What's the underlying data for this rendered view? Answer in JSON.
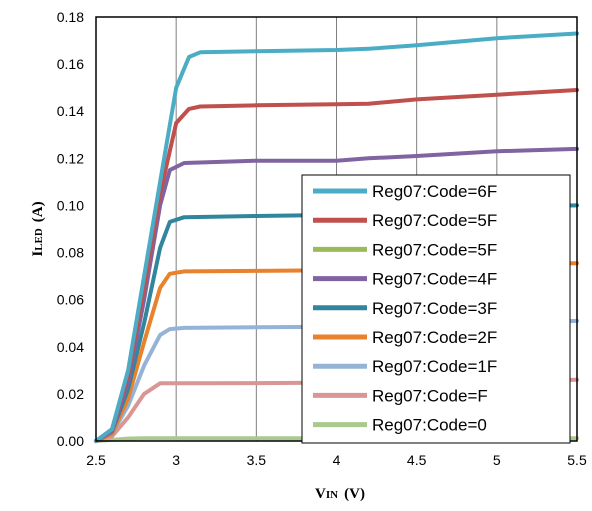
{
  "chart_data": {
    "type": "line",
    "xlabel": {
      "main": "V",
      "sub": "IN",
      "unit": "(V)"
    },
    "ylabel": {
      "main": "I",
      "sub": "LED",
      "unit": "(A)"
    },
    "xlim": [
      2.5,
      5.5
    ],
    "ylim": [
      0,
      0.18
    ],
    "xticks": [
      "2.5",
      "3",
      "3.5",
      "4",
      "4.5",
      "5",
      "5.5"
    ],
    "yticks": [
      "0.00",
      "0.02",
      "0.04",
      "0.06",
      "0.08",
      "0.10",
      "0.12",
      "0.14",
      "0.16",
      "0.18"
    ],
    "grid": "vertical",
    "legend_position": "center-right",
    "series": [
      {
        "name": "Reg07:Code=6F",
        "color": "#4bacc6",
        "points": [
          [
            2.5,
            0
          ],
          [
            2.6,
            0.005
          ],
          [
            2.7,
            0.03
          ],
          [
            2.8,
            0.07
          ],
          [
            2.9,
            0.11
          ],
          [
            3.0,
            0.15
          ],
          [
            3.08,
            0.163
          ],
          [
            3.15,
            0.165
          ],
          [
            3.5,
            0.1655
          ],
          [
            4.0,
            0.166
          ],
          [
            4.2,
            0.1665
          ],
          [
            4.5,
            0.168
          ],
          [
            5.0,
            0.171
          ],
          [
            5.5,
            0.173
          ]
        ]
      },
      {
        "name": "Reg07:Code=5F",
        "color": "#c0504d",
        "points": [
          [
            2.5,
            0
          ],
          [
            2.6,
            0.005
          ],
          [
            2.7,
            0.028
          ],
          [
            2.8,
            0.065
          ],
          [
            2.9,
            0.105
          ],
          [
            3.0,
            0.135
          ],
          [
            3.08,
            0.141
          ],
          [
            3.15,
            0.142
          ],
          [
            3.5,
            0.1425
          ],
          [
            4.0,
            0.143
          ],
          [
            4.2,
            0.1432
          ],
          [
            4.5,
            0.145
          ],
          [
            5.0,
            0.147
          ],
          [
            5.5,
            0.149
          ]
        ]
      },
      {
        "name": "Reg07:Code=5F",
        "color": "#9bbb59",
        "points": []
      },
      {
        "name": "Reg07:Code=4F",
        "color": "#8064a2",
        "points": [
          [
            2.5,
            0
          ],
          [
            2.6,
            0.004
          ],
          [
            2.7,
            0.025
          ],
          [
            2.8,
            0.06
          ],
          [
            2.9,
            0.1
          ],
          [
            2.96,
            0.115
          ],
          [
            3.05,
            0.118
          ],
          [
            3.5,
            0.119
          ],
          [
            4.0,
            0.119
          ],
          [
            4.2,
            0.12
          ],
          [
            4.5,
            0.121
          ],
          [
            5.0,
            0.123
          ],
          [
            5.5,
            0.124
          ]
        ]
      },
      {
        "name": "Reg07:Code=3F",
        "color": "#31859c",
        "points": [
          [
            2.5,
            0
          ],
          [
            2.6,
            0.004
          ],
          [
            2.7,
            0.022
          ],
          [
            2.8,
            0.05
          ],
          [
            2.9,
            0.082
          ],
          [
            2.96,
            0.093
          ],
          [
            3.05,
            0.095
          ],
          [
            3.5,
            0.0955
          ],
          [
            4.0,
            0.096
          ],
          [
            4.5,
            0.098
          ],
          [
            5.0,
            0.0995
          ],
          [
            5.5,
            0.1
          ]
        ]
      },
      {
        "name": "Reg07:Code=2F",
        "color": "#e8822d",
        "points": [
          [
            2.5,
            0
          ],
          [
            2.6,
            0.003
          ],
          [
            2.7,
            0.018
          ],
          [
            2.8,
            0.042
          ],
          [
            2.9,
            0.065
          ],
          [
            2.96,
            0.071
          ],
          [
            3.05,
            0.072
          ],
          [
            3.5,
            0.0722
          ],
          [
            4.0,
            0.0725
          ],
          [
            4.5,
            0.074
          ],
          [
            5.0,
            0.075
          ],
          [
            5.5,
            0.0755
          ]
        ]
      },
      {
        "name": "Reg07:Code=1F",
        "color": "#95b3d7",
        "points": [
          [
            2.5,
            0
          ],
          [
            2.6,
            0.003
          ],
          [
            2.7,
            0.015
          ],
          [
            2.8,
            0.032
          ],
          [
            2.9,
            0.045
          ],
          [
            2.96,
            0.0475
          ],
          [
            3.05,
            0.048
          ],
          [
            3.5,
            0.0483
          ],
          [
            4.0,
            0.0485
          ],
          [
            4.5,
            0.049
          ],
          [
            5.0,
            0.05
          ],
          [
            5.5,
            0.051
          ]
        ]
      },
      {
        "name": "Reg07:Code=F",
        "color": "#d99694",
        "points": [
          [
            2.5,
            0
          ],
          [
            2.6,
            0.002
          ],
          [
            2.7,
            0.01
          ],
          [
            2.8,
            0.02
          ],
          [
            2.9,
            0.0245
          ],
          [
            3.0,
            0.0245
          ],
          [
            3.5,
            0.0246
          ],
          [
            4.0,
            0.0248
          ],
          [
            4.5,
            0.025
          ],
          [
            5.0,
            0.0255
          ],
          [
            5.5,
            0.026
          ]
        ]
      },
      {
        "name": "Reg07:Code=0",
        "color": "#a9c98f",
        "points": [
          [
            2.5,
            0
          ],
          [
            2.7,
            0.001
          ],
          [
            2.8,
            0.0012
          ],
          [
            3.5,
            0.0012
          ],
          [
            4.0,
            0.0012
          ],
          [
            5.0,
            0.0012
          ],
          [
            5.5,
            0.0012
          ]
        ]
      }
    ]
  }
}
